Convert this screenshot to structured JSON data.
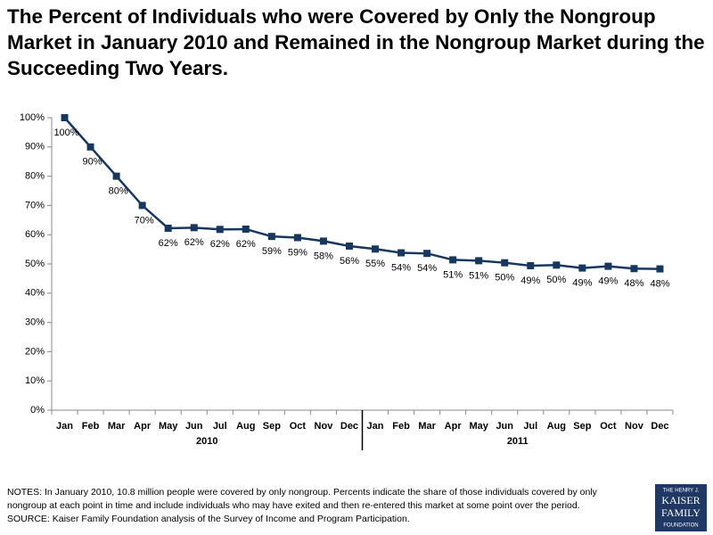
{
  "chart_data": {
    "type": "line",
    "title": "The Percent of Individuals who were Covered by Only the Nongroup Market in January 2010 and Remained in the Nongroup Market during the Succeeding Two Years.",
    "categories": [
      "Jan",
      "Feb",
      "Mar",
      "Apr",
      "May",
      "Jun",
      "Jul",
      "Aug",
      "Sep",
      "Oct",
      "Nov",
      "Dec",
      "Jan",
      "Feb",
      "Mar",
      "Apr",
      "May",
      "Jun",
      "Jul",
      "Aug",
      "Sep",
      "Oct",
      "Nov",
      "Dec"
    ],
    "group_labels": [
      "2010",
      "2011"
    ],
    "values": [
      100,
      90,
      80,
      70,
      62.2,
      62.4,
      61.8,
      61.9,
      59.4,
      59.0,
      57.8,
      56.1,
      55.1,
      53.8,
      53.6,
      51.4,
      51.1,
      50.4,
      49.4,
      49.6,
      48.6,
      49.2,
      48.4,
      48.3
    ],
    "value_labels": [
      "100%",
      "90%",
      "80%",
      "70%",
      "62%",
      "62%",
      "62%",
      "62%",
      "59%",
      "59%",
      "58%",
      "56%",
      "55%",
      "54%",
      "54%",
      "51%",
      "51%",
      "50%",
      "49%",
      "50%",
      "49%",
      "49%",
      "48%",
      "48%"
    ],
    "color": "#17375e",
    "ylim": [
      0,
      100
    ],
    "yticks": [
      {
        "value": 0,
        "label": "0%"
      },
      {
        "value": 10,
        "label": "10%"
      },
      {
        "value": 20,
        "label": "20%"
      },
      {
        "value": 30,
        "label": "30%"
      },
      {
        "value": 40,
        "label": "40%"
      },
      {
        "value": 50,
        "label": "50%"
      },
      {
        "value": 60,
        "label": "60%"
      },
      {
        "value": 70,
        "label": "70%"
      },
      {
        "value": 80,
        "label": "80%"
      },
      {
        "value": 90,
        "label": "90%"
      },
      {
        "value": 100,
        "label": "100%"
      }
    ],
    "grid": false,
    "notes": [
      "NOTES: In January 2010, 10.8 million people were covered by only nongroup.  Percents indicate the share of those individuals covered by only",
      "nongroup at each point in time and include individuals who may have exited and then re-entered this market at some point over the period.",
      "SOURCE:  Kaiser Family Foundation analysis of the Survey of Income and Program Participation."
    ],
    "logo": [
      "THE HENRY J.",
      "KAISER",
      "FAMILY",
      "FOUNDATION"
    ]
  }
}
